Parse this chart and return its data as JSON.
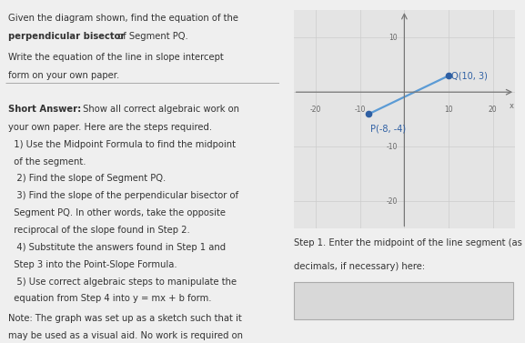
{
  "P": [
    -8,
    -4
  ],
  "Q": [
    10,
    3
  ],
  "P_label": "P(-8, -4)",
  "Q_label": "Q(10, 3)",
  "xlim": [
    -25,
    25
  ],
  "ylim": [
    -25,
    15
  ],
  "xticks": [
    -20,
    -10,
    10,
    20
  ],
  "yticks": [
    -20,
    -10,
    10
  ],
  "grid_color": "#cccccc",
  "line_color": "#5b9bd5",
  "point_color": "#2e5fa3",
  "bg_color": "#efefef",
  "graph_bg": "#e4e4e4",
  "text_color": "#333333",
  "divider_color": "#aaaaaa",
  "answer_box_color": "#d8d8d8",
  "font_size_body": 7.2,
  "font_size_label": 7.0,
  "font_size_axis": 5.5,
  "step1_line1": "Step 1. Enter the midpoint of the line segment (as",
  "step1_line2": "decimals, if necessary) here:"
}
